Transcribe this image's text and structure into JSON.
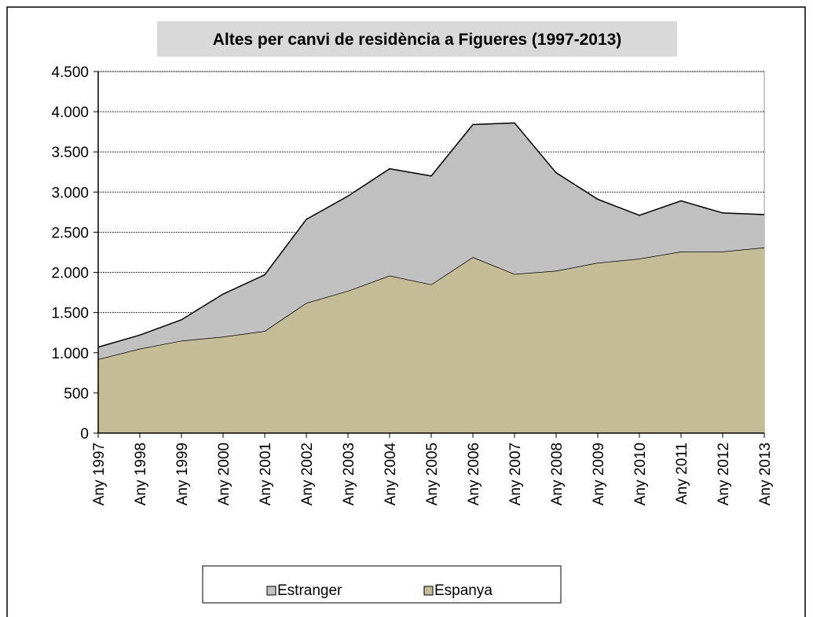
{
  "chart_data": {
    "type": "stacked-area",
    "title": "Altes per canvi de residència a Figueres (1997-2013)",
    "categories": [
      "Any 1997",
      "Any 1998",
      "Any 1999",
      "Any 2000",
      "Any 2001",
      "Any 2002",
      "Any 2003",
      "Any 2004",
      "Any 2005",
      "Any 2006",
      "Any 2007",
      "Any 2008",
      "Any 2009",
      "Any 2010",
      "Any 2011",
      "Any 2012",
      "Any 2013"
    ],
    "series": [
      {
        "name": "Estranger",
        "color": "#c0c0c0",
        "values": [
          150,
          170,
          260,
          530,
          700,
          1040,
          1180,
          1330,
          1350,
          1650,
          1880,
          1220,
          790,
          540,
          630,
          480,
          410
        ]
      },
      {
        "name": "Espanya",
        "color": "#c4bc96",
        "values": [
          920,
          1050,
          1150,
          1200,
          1270,
          1620,
          1770,
          1960,
          1850,
          2190,
          1980,
          2020,
          2120,
          2170,
          2260,
          2260,
          2310
        ]
      }
    ],
    "ylim": [
      0,
      4500
    ],
    "yticks": [
      0,
      500,
      {
        "value": 1000,
        "label": "1.000"
      },
      {
        "value": 1500,
        "label": "1.500"
      },
      {
        "value": 2000,
        "label": "2.000"
      },
      {
        "value": 2500,
        "label": "2.500"
      },
      {
        "value": 3000,
        "label": "3.000"
      },
      {
        "value": 3500,
        "label": "3.500"
      },
      {
        "value": 4000,
        "label": "4.000"
      },
      {
        "value": 4500,
        "label": "4.500"
      }
    ],
    "grid": true,
    "legend": "bottom"
  }
}
